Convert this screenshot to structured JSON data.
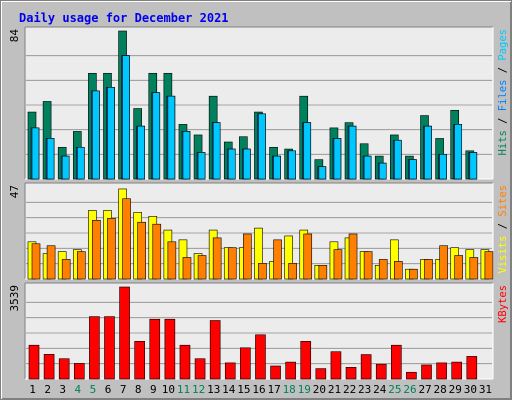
{
  "title": "Daily usage for December 2021",
  "colors": {
    "background": "#c0c0c0",
    "plot_background": "#ececec",
    "grid": "#8c8c8c",
    "title_text": "#0000ee",
    "hits": "#00805c",
    "files": "#0080ff",
    "pages": "#00c8ff",
    "visits": "#ffff00",
    "sites": "#ff8000",
    "kbytes": "#ff0000",
    "weekend_label": "#00805c",
    "weekday_label": "#000000",
    "bar_outline": "#000000"
  },
  "chart_data": [
    {
      "type": "bar",
      "panel": "top",
      "y_max_label": "84",
      "ylim": [
        0,
        84
      ],
      "grid": true,
      "categories": [
        "1",
        "2",
        "3",
        "4",
        "5",
        "6",
        "7",
        "8",
        "9",
        "10",
        "11",
        "12",
        "13",
        "14",
        "15",
        "16",
        "17",
        "18",
        "19",
        "20",
        "21",
        "22",
        "23",
        "24",
        "25",
        "26",
        "27",
        "28",
        "29",
        "30",
        "31"
      ],
      "legend": [
        {
          "text": "Hits",
          "color": "#00805c"
        },
        {
          "text": "Files",
          "color": "#0080ff"
        },
        {
          "text": "Pages",
          "color": "#00c8ff"
        }
      ],
      "series": [
        {
          "name": "Hits",
          "values": [
            38,
            44,
            18,
            27,
            60,
            60,
            84,
            40,
            60,
            60,
            31,
            25,
            47,
            21,
            24,
            38,
            18,
            17,
            47,
            11,
            29,
            32,
            20,
            13,
            25,
            13,
            36,
            23,
            39,
            16,
            0
          ]
        },
        {
          "name": "Files",
          "values": [
            29,
            23,
            13,
            18,
            50,
            52,
            70,
            30,
            49,
            47,
            27,
            15,
            32,
            17,
            17,
            37,
            13,
            16,
            32,
            7,
            23,
            30,
            13,
            9,
            22,
            11,
            30,
            14,
            31,
            15,
            0
          ]
        },
        {
          "name": "Pages",
          "values": [
            29,
            23,
            13,
            18,
            50,
            52,
            70,
            30,
            49,
            47,
            27,
            15,
            32,
            17,
            17,
            37,
            13,
            16,
            32,
            7,
            23,
            30,
            13,
            9,
            22,
            11,
            30,
            14,
            31,
            15,
            0
          ]
        }
      ]
    },
    {
      "type": "bar",
      "panel": "middle",
      "y_max_label": "47",
      "ylim": [
        0,
        47
      ],
      "grid": true,
      "categories": [
        "1",
        "2",
        "3",
        "4",
        "5",
        "6",
        "7",
        "8",
        "9",
        "10",
        "11",
        "12",
        "13",
        "14",
        "15",
        "16",
        "17",
        "18",
        "19",
        "20",
        "21",
        "22",
        "23",
        "24",
        "25",
        "26",
        "27",
        "28",
        "29",
        "30",
        "31"
      ],
      "legend": [
        {
          "text": "Visits",
          "color": "#ffff00"
        },
        {
          "text": "Sites",
          "color": "#ff8000"
        }
      ],
      "series": [
        {
          "name": "Visits",
          "values": [
            19,
            13,
            14,
            15,
            35,
            35,
            46,
            34,
            32,
            25,
            20,
            13,
            25,
            16,
            16,
            26,
            9,
            22,
            25,
            7,
            19,
            21,
            14,
            7,
            20,
            5,
            10,
            10,
            16,
            15,
            15
          ]
        },
        {
          "name": "Sites",
          "values": [
            18,
            17,
            10,
            14,
            30,
            31,
            41,
            29,
            28,
            19,
            11,
            12,
            21,
            16,
            23,
            8,
            20,
            8,
            23,
            7,
            15,
            23,
            14,
            10,
            9,
            5,
            10,
            17,
            12,
            11,
            14
          ]
        }
      ]
    },
    {
      "type": "bar",
      "panel": "bottom",
      "y_max_label": "3539",
      "ylim": [
        0,
        3539
      ],
      "grid": true,
      "categories": [
        "1",
        "2",
        "3",
        "4",
        "5",
        "6",
        "7",
        "8",
        "9",
        "10",
        "11",
        "12",
        "13",
        "14",
        "15",
        "16",
        "17",
        "18",
        "19",
        "20",
        "21",
        "22",
        "23",
        "24",
        "25",
        "26",
        "27",
        "28",
        "29",
        "30",
        "31"
      ],
      "legend": [
        {
          "text": "KBytes",
          "color": "#ff0000"
        }
      ],
      "series": [
        {
          "name": "KBytes",
          "values": [
            1300,
            950,
            780,
            600,
            2400,
            2400,
            3539,
            1450,
            2300,
            2300,
            1300,
            780,
            2250,
            620,
            1200,
            1700,
            500,
            650,
            1450,
            400,
            1050,
            450,
            940,
            570,
            1300,
            260,
            540,
            620,
            650,
            870,
            0
          ]
        }
      ]
    }
  ],
  "x_axis": {
    "labels": [
      "1",
      "2",
      "3",
      "4",
      "5",
      "6",
      "7",
      "8",
      "9",
      "10",
      "11",
      "12",
      "13",
      "14",
      "15",
      "16",
      "17",
      "18",
      "19",
      "20",
      "21",
      "22",
      "23",
      "24",
      "25",
      "26",
      "27",
      "28",
      "29",
      "30",
      "31"
    ],
    "weekend_days": [
      "4",
      "5",
      "11",
      "12",
      "18",
      "19",
      "25",
      "26"
    ]
  }
}
